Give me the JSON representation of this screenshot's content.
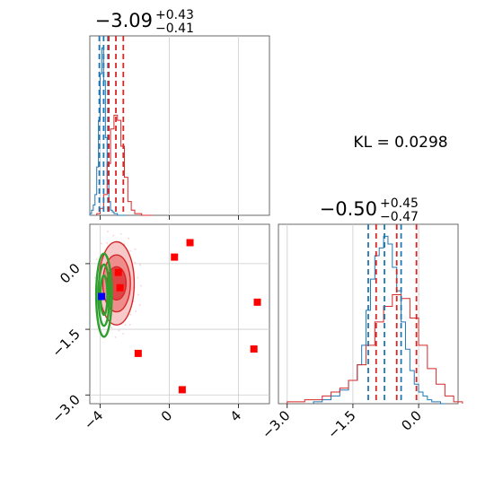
{
  "chart_data": {
    "type": "corner",
    "annotation": "KL = 0.0298",
    "colors": {
      "posterior_a": "#1f77b4",
      "posterior_b": "#d62728",
      "contour_b_fill": "#e8494c",
      "contour_a": "#2ca02c",
      "markers": "#ff0000",
      "truth": "#0000ff",
      "grid": "#cccccc"
    },
    "parameters": [
      {
        "title": {
          "base": "−3.09",
          "upper": "+0.43",
          "lower": "−0.41"
        },
        "xlim": [
          -4.6,
          5.8
        ],
        "ticks": [
          -4,
          0,
          4
        ],
        "tick_labels": [
          "−4",
          "0",
          "4"
        ],
        "quantiles_a": [
          -4.05,
          -3.8,
          -3.55
        ],
        "quantiles_b": [
          -3.5,
          -3.09,
          -2.66
        ],
        "hist_a": {
          "x": [
            -4.6,
            -4.5,
            -4.4,
            -4.3,
            -4.2,
            -4.1,
            -4.0,
            -3.9,
            -3.8,
            -3.7,
            -3.6,
            -3.5,
            -3.4,
            -3.3,
            -3.2,
            -3.1,
            -3.0,
            -2.9,
            -2.8,
            -2.7,
            -2.6
          ],
          "y": [
            0.01,
            0.03,
            0.06,
            0.12,
            0.28,
            0.55,
            0.82,
            0.97,
            0.78,
            0.45,
            0.2,
            0.08,
            0.03,
            0.02,
            0.01,
            0.01,
            0.0,
            0.0,
            0.0,
            0.0,
            0.0
          ]
        },
        "hist_b": {
          "x": [
            -4.2,
            -4.0,
            -3.8,
            -3.6,
            -3.4,
            -3.2,
            -3.0,
            -2.8,
            -2.6,
            -2.4,
            -2.2,
            -2.0,
            -1.8,
            -1.6,
            -1.4,
            -1.2
          ],
          "y": [
            0.01,
            0.04,
            0.12,
            0.3,
            0.5,
            0.58,
            0.55,
            0.4,
            0.22,
            0.08,
            0.03,
            0.01,
            0.01,
            0.0,
            0.0,
            0.0
          ]
        }
      },
      {
        "title": {
          "base": "−0.50",
          "upper": "+0.45",
          "lower": "−0.47"
        },
        "xlim": [
          -3.2,
          0.9
        ],
        "ticks": [
          -3.0,
          -1.5,
          0.0
        ],
        "tick_labels": [
          "−3.0",
          "−1.5",
          "0.0"
        ],
        "quantiles_a": [
          -1.15,
          -0.78,
          -0.4
        ],
        "quantiles_b": [
          -0.97,
          -0.5,
          -0.05
        ],
        "hist_a": {
          "x": [
            -2.4,
            -2.2,
            -2.0,
            -1.8,
            -1.6,
            -1.4,
            -1.3,
            -1.2,
            -1.1,
            -1.0,
            -0.9,
            -0.8,
            -0.7,
            -0.6,
            -0.5,
            -0.4,
            -0.3,
            -0.2,
            -0.1,
            0.0,
            0.1,
            0.2,
            0.3,
            0.4,
            0.5
          ],
          "y": [
            0.01,
            0.02,
            0.04,
            0.07,
            0.12,
            0.2,
            0.3,
            0.48,
            0.64,
            0.76,
            0.8,
            0.86,
            0.82,
            0.7,
            0.58,
            0.42,
            0.28,
            0.17,
            0.1,
            0.06,
            0.04,
            0.02,
            0.01,
            0.01,
            0.0
          ]
        },
        "hist_b": {
          "x": [
            -3.0,
            -2.6,
            -2.2,
            -2.0,
            -1.8,
            -1.6,
            -1.4,
            -1.2,
            -1.0,
            -0.8,
            -0.6,
            -0.4,
            -0.2,
            0.0,
            0.2,
            0.4,
            0.6,
            0.8
          ],
          "y": [
            0.01,
            0.02,
            0.04,
            0.06,
            0.08,
            0.12,
            0.2,
            0.3,
            0.42,
            0.5,
            0.56,
            0.54,
            0.44,
            0.3,
            0.18,
            0.1,
            0.04,
            0.01
          ]
        }
      }
    ],
    "joint": {
      "xlim": [
        -4.6,
        5.8
      ],
      "ylim": [
        -3.2,
        0.9
      ],
      "yticks": [
        0.0,
        -1.5,
        -3.0
      ],
      "ytick_labels": [
        "0.0",
        "−1.5",
        "−3.0"
      ],
      "contours_b_center": [
        -3.05,
        -0.45
      ],
      "contours_b_radii": [
        [
          0.55,
          0.38
        ],
        [
          0.8,
          0.65
        ],
        [
          1.02,
          0.95
        ]
      ],
      "contours_a_center": [
        -3.78,
        -0.72
      ],
      "contours_a_radii": [
        [
          0.2,
          0.45
        ],
        [
          0.32,
          0.7
        ],
        [
          0.45,
          0.95
        ]
      ],
      "markers": [
        {
          "x": -2.95,
          "y": -0.2
        },
        {
          "x": -2.85,
          "y": -0.55
        },
        {
          "x": 0.3,
          "y": 0.15
        },
        {
          "x": 1.2,
          "y": 0.48
        },
        {
          "x": 5.1,
          "y": -0.88
        },
        {
          "x": 4.9,
          "y": -1.95
        },
        {
          "x": -1.8,
          "y": -2.05
        },
        {
          "x": 0.75,
          "y": -2.88
        }
      ],
      "truth": {
        "x": -3.92,
        "y": -0.75
      }
    }
  }
}
